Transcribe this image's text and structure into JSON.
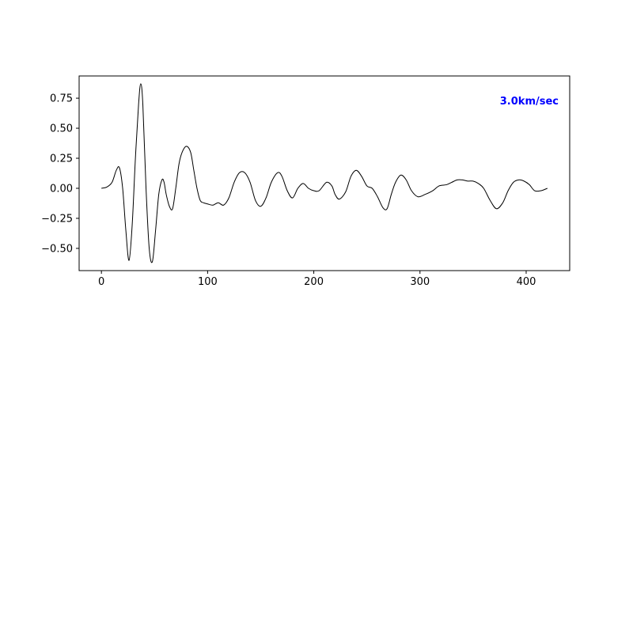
{
  "chart_data": {
    "type": "line",
    "title": "",
    "xlabel": "",
    "ylabel": "",
    "xlim": [
      -21,
      441
    ],
    "ylim": [
      -0.685,
      0.935
    ],
    "xticks": [
      0,
      100,
      200,
      300,
      400
    ],
    "xtick_labels": [
      "0",
      "100",
      "200",
      "300",
      "400"
    ],
    "yticks": [
      -0.5,
      -0.25,
      0.0,
      0.25,
      0.5,
      0.75
    ],
    "ytick_labels": [
      "−0.50",
      "−0.25",
      "0.00",
      "0.25",
      "0.50",
      "0.75"
    ],
    "grid": false,
    "annotation": {
      "text": "3.0km/sec",
      "color": "#0000ff",
      "placement": "top-right"
    },
    "line_color": "#000000",
    "series": [
      {
        "x": [
          0,
          5,
          10,
          14,
          17,
          20,
          23,
          26,
          29,
          32,
          35,
          37,
          39,
          42,
          45,
          48,
          51,
          54,
          57,
          59,
          61,
          64,
          67,
          70,
          73,
          76,
          80,
          84,
          87,
          90,
          93,
          96,
          100,
          105,
          110,
          115,
          120,
          125,
          130,
          135,
          140,
          145,
          150,
          155,
          160,
          166,
          170,
          175,
          180,
          185,
          190,
          195,
          200,
          205,
          212,
          217,
          220,
          224,
          230,
          235,
          240,
          245,
          250,
          255,
          260,
          265,
          269,
          273,
          277,
          282,
          287,
          292,
          298,
          305,
          312,
          318,
          325,
          330,
          335,
          340,
          345,
          350,
          355,
          360,
          366,
          372,
          378,
          383,
          388,
          393,
          398,
          403,
          408,
          414,
          420
        ],
        "y": [
          0.0,
          0.01,
          0.05,
          0.15,
          0.17,
          0.0,
          -0.35,
          -0.6,
          -0.3,
          0.25,
          0.7,
          0.87,
          0.7,
          0.0,
          -0.5,
          -0.61,
          -0.35,
          -0.05,
          0.07,
          0.05,
          -0.05,
          -0.15,
          -0.17,
          0.0,
          0.2,
          0.3,
          0.35,
          0.3,
          0.15,
          0.0,
          -0.1,
          -0.12,
          -0.13,
          -0.14,
          -0.12,
          -0.14,
          -0.08,
          0.05,
          0.13,
          0.13,
          0.05,
          -0.1,
          -0.15,
          -0.08,
          0.05,
          0.13,
          0.1,
          -0.02,
          -0.08,
          0.0,
          0.04,
          0.0,
          -0.02,
          -0.02,
          0.05,
          0.02,
          -0.05,
          -0.09,
          -0.03,
          0.1,
          0.15,
          0.1,
          0.02,
          0.0,
          -0.07,
          -0.16,
          -0.17,
          -0.05,
          0.05,
          0.11,
          0.07,
          -0.02,
          -0.07,
          -0.05,
          -0.02,
          0.02,
          0.03,
          0.05,
          0.07,
          0.07,
          0.06,
          0.06,
          0.04,
          0.0,
          -0.1,
          -0.17,
          -0.12,
          -0.02,
          0.05,
          0.07,
          0.06,
          0.03,
          -0.02,
          -0.02,
          0.0
        ]
      }
    ]
  }
}
